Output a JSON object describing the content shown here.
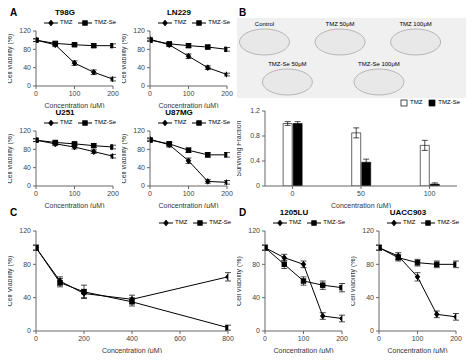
{
  "chart_data": [
    {
      "type": "line",
      "title": "T98G",
      "annotations": [
        "A"
      ],
      "x_label": "Concentration (μM)",
      "y_label": "Cell viability (%)",
      "x": [
        0,
        50,
        100,
        150,
        200
      ],
      "series": [
        {
          "name": "TMZ",
          "color": "black",
          "marker": "diamond",
          "line_style": "solid",
          "values": [
            100,
            90,
            50,
            30,
            15
          ],
          "errors": [
            3,
            4,
            5,
            5,
            4
          ]
        },
        {
          "name": "TMZ-Se",
          "color": "black",
          "marker": "square",
          "line_style": "solid",
          "values": [
            100,
            93,
            90,
            88,
            88
          ],
          "errors": [
            3,
            3,
            3,
            4,
            4
          ]
        }
      ],
      "xlim": [
        0,
        200
      ],
      "xticks": [
        0,
        100,
        200
      ],
      "ylim": [
        0,
        120
      ],
      "yticks": [
        0,
        40,
        80,
        120
      ],
      "legend": "upper right",
      "grid": false
    },
    {
      "type": "line",
      "title": "LN229",
      "x_label": "Concentration (μM)",
      "y_label": "Cell viability (%)",
      "x": [
        0,
        50,
        100,
        150,
        200
      ],
      "series": [
        {
          "name": "TMZ",
          "color": "black",
          "marker": "diamond",
          "line_style": "solid",
          "values": [
            102,
            90,
            65,
            40,
            25
          ],
          "errors": [
            3,
            4,
            5,
            4,
            3
          ]
        },
        {
          "name": "TMZ-Se",
          "color": "black",
          "marker": "square",
          "line_style": "solid",
          "values": [
            100,
            92,
            88,
            85,
            80
          ],
          "errors": [
            3,
            3,
            4,
            4,
            4
          ]
        }
      ],
      "xlim": [
        0,
        200
      ],
      "xticks": [
        0,
        100,
        200
      ],
      "ylim": [
        0,
        120
      ],
      "yticks": [
        0,
        40,
        80,
        120
      ],
      "legend": "upper right",
      "grid": false
    },
    {
      "type": "line",
      "title": "U251",
      "x_label": "Concentration (μM)",
      "y_label": "Cell viability (%)",
      "x": [
        0,
        50,
        100,
        150,
        200
      ],
      "series": [
        {
          "name": "TMZ",
          "color": "black",
          "marker": "diamond",
          "line_style": "solid",
          "values": [
            100,
            92,
            85,
            75,
            65
          ],
          "errors": [
            3,
            4,
            4,
            4,
            4
          ]
        },
        {
          "name": "TMZ-Se",
          "color": "black",
          "marker": "square",
          "line_style": "solid",
          "values": [
            100,
            95,
            92,
            88,
            85
          ],
          "errors": [
            3,
            3,
            3,
            4,
            4
          ]
        }
      ],
      "xlim": [
        0,
        200
      ],
      "xticks": [
        0,
        100,
        200
      ],
      "ylim": [
        0,
        120
      ],
      "yticks": [
        0,
        40,
        80,
        120
      ],
      "legend": "upper right",
      "grid": false
    },
    {
      "type": "line",
      "title": "U87MG",
      "x_label": "Concentration (μM)",
      "y_label": "Cell viability (%)",
      "x": [
        0,
        50,
        100,
        150,
        200
      ],
      "series": [
        {
          "name": "TMZ",
          "color": "black",
          "marker": "diamond",
          "line_style": "solid",
          "values": [
            102,
            90,
            55,
            10,
            8
          ],
          "errors": [
            3,
            5,
            6,
            4,
            4
          ]
        },
        {
          "name": "TMZ-Se",
          "color": "black",
          "marker": "square",
          "line_style": "solid",
          "values": [
            100,
            92,
            78,
            68,
            68
          ],
          "errors": [
            3,
            4,
            5,
            5,
            5
          ]
        }
      ],
      "xlim": [
        0,
        200
      ],
      "xticks": [
        0,
        100,
        200
      ],
      "ylim": [
        0,
        120
      ],
      "yticks": [
        0,
        40,
        80,
        120
      ],
      "legend": "upper right",
      "grid": false
    },
    {
      "type": "images",
      "annotations": [
        "B"
      ],
      "categories": [
        "Control",
        "TMZ 50μM",
        "TMZ 100μM",
        "TMZ-Se 50μM",
        "TMZ-Se 100μM"
      ]
    },
    {
      "type": "bar",
      "x_label": "Concentration (μM)",
      "y_label": "Surviving Fraction",
      "x": [
        0,
        50,
        100
      ],
      "series": [
        {
          "name": "TMZ",
          "color": "white",
          "values": [
            1.0,
            0.85,
            0.65
          ],
          "errors": [
            0.03,
            0.08,
            0.08
          ]
        },
        {
          "name": "TMZ-Se",
          "color": "black",
          "values": [
            1.0,
            0.38,
            0.03
          ],
          "errors": [
            0.03,
            0.05,
            0.02
          ]
        }
      ],
      "xlim": [
        -20,
        120
      ],
      "xticks": [
        0,
        50,
        100
      ],
      "ylim": [
        0,
        1.2
      ],
      "yticks": [
        0,
        0.4,
        0.8,
        1.2
      ],
      "legend": "upper right",
      "grid": false
    },
    {
      "type": "line",
      "annotations": [
        "C"
      ],
      "x_label": "Concentration (μM)",
      "y_label": "Cell Viability (%)",
      "x": [
        0,
        100,
        200,
        400,
        800
      ],
      "series": [
        {
          "name": "TMZ",
          "color": "black",
          "marker": "diamond",
          "line_style": "solid",
          "values": [
            100,
            60,
            45,
            38,
            65
          ],
          "errors": [
            3,
            5,
            5,
            5,
            5
          ]
        },
        {
          "name": "TMZ-Se",
          "color": "black",
          "marker": "square",
          "line_style": "solid",
          "values": [
            100,
            58,
            47,
            35,
            4
          ],
          "errors": [
            3,
            5,
            8,
            5,
            3
          ]
        }
      ],
      "xlim": [
        0,
        800
      ],
      "xticks": [
        0,
        200,
        400,
        600,
        800
      ],
      "ylim": [
        0,
        120
      ],
      "yticks": [
        0,
        40,
        80,
        120
      ],
      "legend": "upper right",
      "grid": false
    },
    {
      "type": "line",
      "title": "1205LU",
      "annotations": [
        "D"
      ],
      "x_label": "Concentration (μM)",
      "y_label": "Cell viability (%)",
      "x": [
        0,
        50,
        100,
        150,
        200
      ],
      "series": [
        {
          "name": "TMZ",
          "color": "black",
          "marker": "diamond",
          "line_style": "solid",
          "values": [
            100,
            88,
            80,
            18,
            15
          ],
          "errors": [
            3,
            4,
            4,
            4,
            4
          ]
        },
        {
          "name": "TMZ-Se",
          "color": "black",
          "marker": "square",
          "line_style": "solid",
          "values": [
            100,
            80,
            60,
            55,
            52
          ],
          "errors": [
            3,
            5,
            5,
            5,
            5
          ]
        }
      ],
      "xlim": [
        0,
        200
      ],
      "xticks": [
        0,
        100,
        200
      ],
      "ylim": [
        0,
        120
      ],
      "yticks": [
        0,
        40,
        80,
        120
      ],
      "legend": "upper right",
      "grid": false
    },
    {
      "type": "line",
      "title": "UACC903",
      "x_label": "Concentration (μM)",
      "y_label": "Cell viability (%)",
      "x": [
        0,
        50,
        100,
        150,
        200
      ],
      "series": [
        {
          "name": "TMZ",
          "color": "black",
          "marker": "diamond",
          "line_style": "solid",
          "values": [
            100,
            90,
            65,
            20,
            17
          ],
          "errors": [
            3,
            4,
            5,
            4,
            4
          ]
        },
        {
          "name": "TMZ-Se",
          "color": "black",
          "marker": "square",
          "line_style": "solid",
          "values": [
            100,
            88,
            82,
            80,
            80
          ],
          "errors": [
            3,
            4,
            4,
            4,
            4
          ]
        }
      ],
      "xlim": [
        0,
        200
      ],
      "xticks": [
        0,
        100,
        200
      ],
      "ylim": [
        0,
        120
      ],
      "yticks": [
        0,
        40,
        80,
        120
      ],
      "legend": "upper right",
      "grid": false
    }
  ]
}
